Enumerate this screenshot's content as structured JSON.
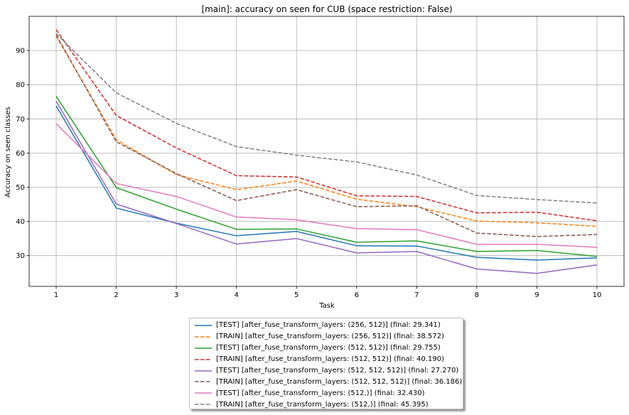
{
  "chart_data": {
    "type": "line",
    "title": "[main]: accuracy on seen for CUB (space restriction: False)",
    "xlabel": "Task",
    "ylabel": "Accuracy on seen classes",
    "x": [
      1,
      2,
      3,
      4,
      5,
      6,
      7,
      8,
      9,
      10
    ],
    "xticks": [
      "1",
      "2",
      "3",
      "4",
      "5",
      "6",
      "7",
      "8",
      "9",
      "10"
    ],
    "yticks": [
      "30",
      "40",
      "50",
      "60",
      "70",
      "80",
      "90"
    ],
    "xlim": [
      0.55,
      10.45
    ],
    "ylim": [
      21,
      100
    ],
    "grid": true,
    "legend_position": "below",
    "series": [
      {
        "name": "[TEST] [after_fuse_transform_layers: (256, 512)] (final:  29.341)",
        "color": "#1f77b4",
        "style": "solid",
        "values": [
          73.8,
          43.9,
          39.5,
          35.8,
          37.1,
          32.9,
          32.8,
          29.5,
          28.7,
          29.341
        ]
      },
      {
        "name": "[TRAIN] [after_fuse_transform_layers: (256, 512)] (final:  38.572)",
        "color": "#ff7f0e",
        "style": "dashed",
        "values": [
          94.2,
          63.9,
          53.7,
          49.3,
          51.8,
          46.5,
          44.3,
          40.1,
          39.6,
          38.572
        ]
      },
      {
        "name": "[TEST] [after_fuse_transform_layers: (512, 512)] (final:  29.755)",
        "color": "#2ca02c",
        "style": "solid",
        "values": [
          76.6,
          49.9,
          43.6,
          37.7,
          37.8,
          33.9,
          34.3,
          31.2,
          31.5,
          29.755
        ]
      },
      {
        "name": "[TRAIN] [after_fuse_transform_layers: (512, 512)] (final:  40.190)",
        "color": "#d62728",
        "style": "dashed",
        "values": [
          96.1,
          71.0,
          61.5,
          53.4,
          53.0,
          47.5,
          47.3,
          42.5,
          42.7,
          40.19
        ]
      },
      {
        "name": "[TEST] [after_fuse_transform_layers: (512, 512, 512)] (final:  27.270)",
        "color": "#9467bd",
        "style": "solid",
        "values": [
          75.2,
          45.1,
          39.4,
          33.4,
          35.0,
          30.8,
          31.2,
          26.1,
          24.8,
          27.27
        ]
      },
      {
        "name": "[TRAIN] [after_fuse_transform_layers: (512, 512, 512)] (final:  36.186)",
        "color": "#8c564b",
        "style": "dashed",
        "values": [
          94.6,
          63.3,
          54.0,
          46.1,
          49.3,
          44.3,
          44.6,
          36.6,
          35.6,
          36.186
        ]
      },
      {
        "name": "[TEST] [after_fuse_transform_layers: (512,)] (final:  32.430)",
        "color": "#e377c2",
        "style": "solid",
        "values": [
          68.6,
          51.1,
          47.3,
          41.3,
          40.5,
          37.9,
          37.6,
          33.3,
          33.3,
          32.43
        ]
      },
      {
        "name": "[TRAIN] [after_fuse_transform_layers: (512,)] (final:  45.395)",
        "color": "#7f7f7f",
        "style": "dashed",
        "values": [
          94.9,
          77.6,
          68.7,
          61.9,
          59.4,
          57.4,
          53.6,
          47.6,
          46.4,
          45.395
        ]
      }
    ]
  }
}
